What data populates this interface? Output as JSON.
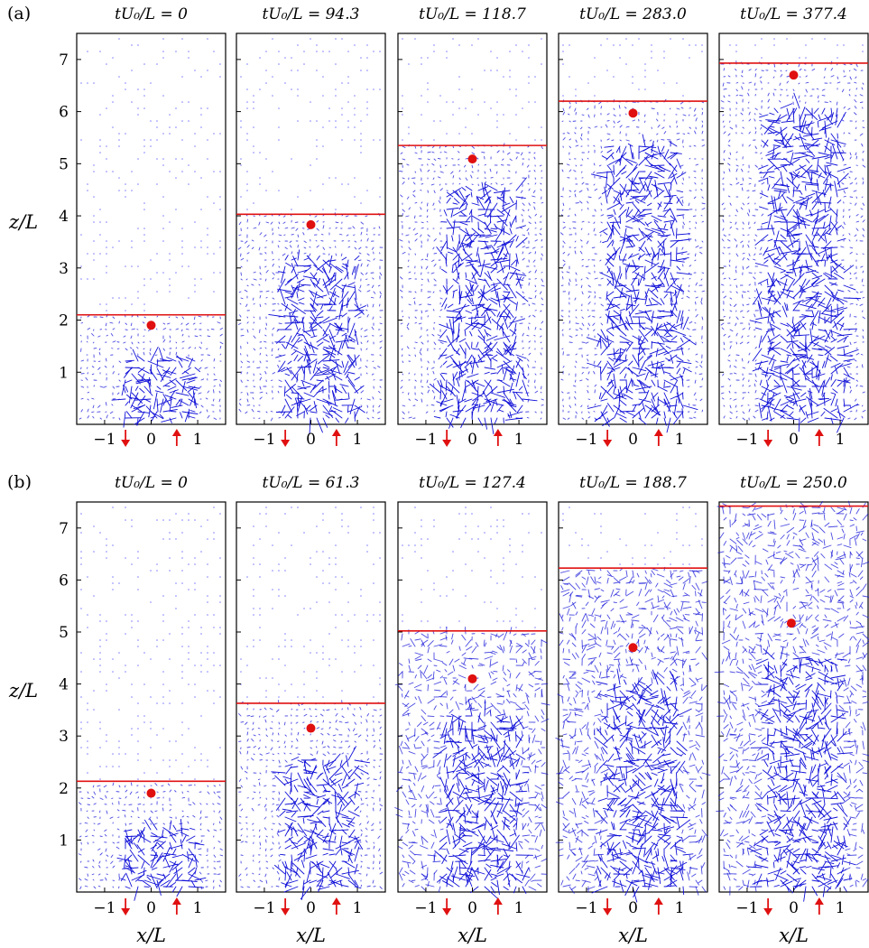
{
  "colors": {
    "vector": "#1010d8",
    "front": "#e01010",
    "marker": "#e01010",
    "frame": "#000000"
  },
  "chart_data": [
    {
      "type": "quiver",
      "panel_label": "(a)",
      "ylabel": "z/L",
      "xlabel": "",
      "xlim": [
        -1.6,
        1.6
      ],
      "ylim": [
        0.0,
        7.5
      ],
      "xticks": [
        -1,
        0,
        1
      ],
      "yticks": [
        1,
        2,
        3,
        4,
        5,
        6,
        7
      ],
      "arrow_markers": [
        {
          "x": -0.55,
          "direction": "down"
        },
        {
          "x": 0.55,
          "direction": "up"
        }
      ],
      "snapshots": [
        {
          "title": "tU₀/L = 0",
          "front_z": 2.1,
          "marker": {
            "x": 0.0,
            "z": 1.9
          }
        },
        {
          "title": "tU₀/L = 94.3",
          "front_z": 4.03,
          "marker": {
            "x": 0.0,
            "z": 3.83
          }
        },
        {
          "title": "tU₀/L = 118.7",
          "front_z": 5.35,
          "marker": {
            "x": 0.0,
            "z": 5.09
          }
        },
        {
          "title": "tU₀/L = 283.0",
          "front_z": 6.2,
          "marker": {
            "x": 0.0,
            "z": 5.97
          }
        },
        {
          "title": "tU₀/L = 377.4",
          "front_z": 6.93,
          "marker": {
            "x": 0.0,
            "z": 6.7
          }
        }
      ]
    },
    {
      "type": "quiver",
      "panel_label": "(b)",
      "ylabel": "z/L",
      "xlabel": "x/L",
      "xlim": [
        -1.6,
        1.6
      ],
      "ylim": [
        0.0,
        7.5
      ],
      "xticks": [
        -1,
        0,
        1
      ],
      "yticks": [
        1,
        2,
        3,
        4,
        5,
        6,
        7
      ],
      "arrow_markers": [
        {
          "x": -0.55,
          "direction": "down"
        },
        {
          "x": 0.55,
          "direction": "up"
        }
      ],
      "snapshots": [
        {
          "title": "tU₀/L = 0",
          "front_z": 2.13,
          "marker": {
            "x": 0.0,
            "z": 1.9
          }
        },
        {
          "title": "tU₀/L = 61.3",
          "front_z": 3.63,
          "marker": {
            "x": 0.0,
            "z": 3.15
          }
        },
        {
          "title": "tU₀/L = 127.4",
          "front_z": 5.02,
          "marker": {
            "x": 0.0,
            "z": 4.1
          }
        },
        {
          "title": "tU₀/L = 188.7",
          "front_z": 6.23,
          "marker": {
            "x": 0.0,
            "z": 4.7
          }
        },
        {
          "title": "tU₀/L = 250.0",
          "front_z": 7.42,
          "marker": {
            "x": -0.05,
            "z": 5.17
          }
        }
      ]
    }
  ]
}
